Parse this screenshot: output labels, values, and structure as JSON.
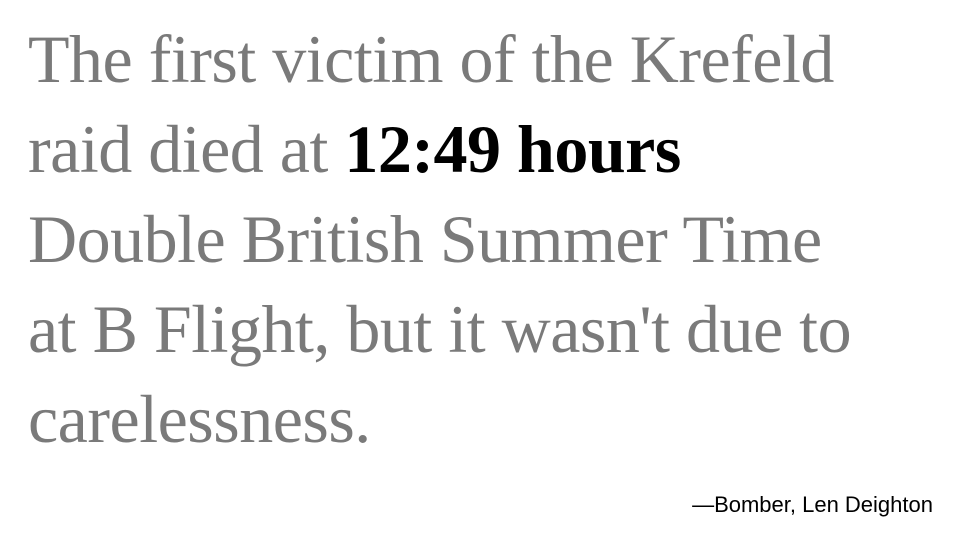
{
  "quote": {
    "line1": "The first victim of the Krefeld",
    "line2_prefix": "raid died at ",
    "highlight": "12:49 hours",
    "line3": "Double British Summer Time",
    "line4": "at B Flight, but it wasn't due to",
    "line5": "carelessness."
  },
  "attribution": "—Bomber, Len Deighton",
  "colors": {
    "body_text": "#7a7a7a",
    "highlight_text": "#000000",
    "background": "#ffffff"
  }
}
